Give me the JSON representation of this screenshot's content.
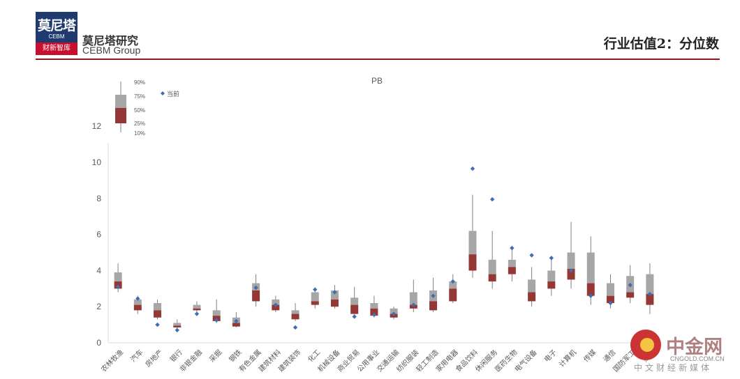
{
  "header": {
    "logo_cn": "莫尼塔",
    "logo_en": "CEBM",
    "logo_sub": "财新智库",
    "brand_cn": "莫尼塔研究",
    "brand_en": "CEBM Group",
    "title": "行业估值2：分位数"
  },
  "watermark": {
    "name": "中金网",
    "url": "CNGOLD.COM.CN",
    "sub": "中文财经新媒体"
  },
  "colors": {
    "upper_box": "#a6a6a6",
    "lower_box": "#953735",
    "marker": "#3e6fb0",
    "whisker": "#7f7f7f"
  },
  "chart_data": {
    "type": "box",
    "title": "PB",
    "ylim": [
      0,
      14
    ],
    "yticks": [
      0,
      2,
      4,
      6,
      8,
      10,
      12
    ],
    "legend": {
      "labels": [
        "90%",
        "75%",
        "50%",
        "25%",
        "10%"
      ],
      "marker_label": "当前"
    },
    "categories": [
      "农林牧渔",
      "汽车",
      "房地产",
      "银行",
      "非银金融",
      "采掘",
      "钢铁",
      "有色金属",
      "建筑材料",
      "建筑装饰",
      "化工",
      "机械设备",
      "商业贸易",
      "公用事业",
      "交通运输",
      "纺织服装",
      "轻工制造",
      "家用电器",
      "食品饮料",
      "休闲服务",
      "医药生物",
      "电气设备",
      "电子",
      "计算机",
      "传媒",
      "通信",
      "国防军工",
      "综合"
    ],
    "series": [
      {
        "name": "10%",
        "values": [
          2.8,
          1.6,
          1.3,
          0.75,
          1.5,
          1.1,
          0.85,
          2.0,
          1.7,
          1.2,
          1.9,
          1.9,
          1.5,
          1.4,
          1.3,
          1.7,
          1.7,
          2.2,
          3.6,
          3.0,
          3.4,
          2.0,
          2.6,
          3.0,
          2.1,
          1.9,
          2.2,
          1.6
        ]
      },
      {
        "name": "25%",
        "values": [
          3.0,
          1.8,
          1.4,
          0.85,
          1.8,
          1.2,
          0.9,
          2.3,
          1.8,
          1.3,
          2.1,
          2.0,
          1.6,
          1.5,
          1.4,
          1.9,
          1.8,
          2.3,
          4.0,
          3.4,
          3.8,
          2.3,
          3.0,
          3.5,
          2.6,
          2.2,
          2.5,
          2.1
        ]
      },
      {
        "name": "50%",
        "values": [
          3.4,
          2.1,
          1.8,
          0.95,
          1.9,
          1.5,
          1.1,
          2.9,
          2.1,
          1.6,
          2.3,
          2.4,
          2.1,
          1.9,
          1.6,
          2.1,
          2.3,
          3.0,
          4.9,
          3.8,
          4.2,
          2.8,
          3.4,
          4.1,
          3.3,
          2.6,
          2.8,
          2.7
        ]
      },
      {
        "name": "75%",
        "values": [
          3.9,
          2.4,
          2.2,
          1.1,
          2.1,
          1.8,
          1.4,
          3.3,
          2.4,
          1.8,
          2.8,
          2.9,
          2.5,
          2.2,
          1.9,
          2.8,
          2.9,
          3.4,
          6.2,
          4.6,
          4.6,
          3.5,
          4.0,
          5.0,
          5.0,
          3.3,
          3.7,
          3.8
        ]
      },
      {
        "name": "90%",
        "values": [
          4.4,
          2.6,
          2.4,
          1.3,
          2.3,
          2.4,
          1.7,
          3.8,
          2.6,
          2.2,
          3.0,
          3.2,
          3.1,
          2.6,
          2.0,
          3.5,
          3.6,
          3.8,
          8.2,
          6.2,
          5.2,
          4.2,
          4.7,
          6.7,
          5.9,
          3.8,
          4.3,
          4.4
        ]
      },
      {
        "name": "当前",
        "values": [
          3.1,
          2.45,
          1.0,
          0.7,
          1.6,
          1.25,
          1.2,
          3.05,
          2.1,
          0.85,
          2.95,
          2.8,
          1.45,
          1.55,
          1.6,
          2.1,
          2.6,
          3.4,
          9.65,
          7.95,
          5.25,
          4.85,
          4.7,
          4.0,
          2.6,
          2.2,
          3.2,
          2.7
        ]
      }
    ]
  }
}
